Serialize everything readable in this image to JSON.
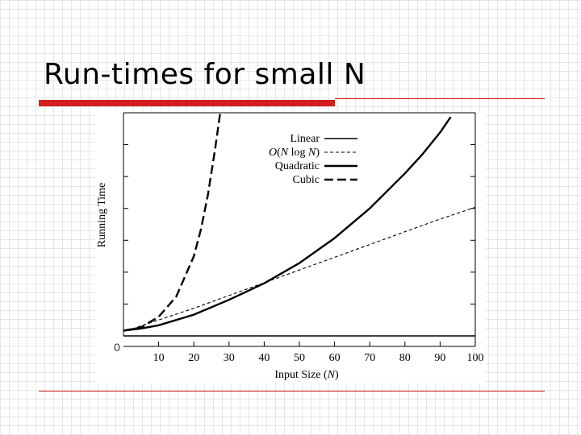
{
  "slide": {
    "title": "Run-times for small N"
  },
  "chart_data": {
    "type": "line",
    "xlabel_text": "Input Size (",
    "xlabel_var": "N",
    "xlabel_close": ")",
    "ylabel": "Running Time",
    "x_ticks": [
      "10",
      "20",
      "30",
      "40",
      "50",
      "60",
      "70",
      "80",
      "90",
      "100"
    ],
    "y_tick_labels": [
      "0"
    ],
    "xlim": [
      0,
      100
    ],
    "grid": false,
    "legend_position": "top-center",
    "series": [
      {
        "name": "Linear",
        "style": "solid-thin",
        "x": [
          0,
          100
        ],
        "y": [
          0,
          0
        ]
      },
      {
        "name_parts": [
          "O",
          "(",
          "N",
          " log ",
          "N",
          ")"
        ],
        "style": "dashed-thin",
        "x": [
          1,
          10,
          20,
          30,
          40,
          50,
          60,
          70,
          80,
          90,
          100
        ],
        "y": [
          10,
          30,
          52,
          76,
          100,
          124,
          148,
          172,
          196,
          220,
          242
        ]
      },
      {
        "name": "Quadratic",
        "style": "solid-thick",
        "x": [
          0,
          5,
          10,
          20,
          30,
          40,
          50,
          60,
          70,
          80,
          85,
          90,
          93
        ],
        "y": [
          10,
          14,
          20,
          40,
          68,
          99,
          137,
          184,
          240,
          306,
          342,
          383,
          412
        ]
      },
      {
        "name": "Cubic",
        "style": "long-dash-thick",
        "x": [
          0,
          5,
          10,
          15,
          20,
          22,
          24,
          26,
          27.5
        ],
        "y": [
          10,
          16,
          36,
          74,
          150,
          200,
          265,
          350,
          420
        ]
      }
    ]
  }
}
